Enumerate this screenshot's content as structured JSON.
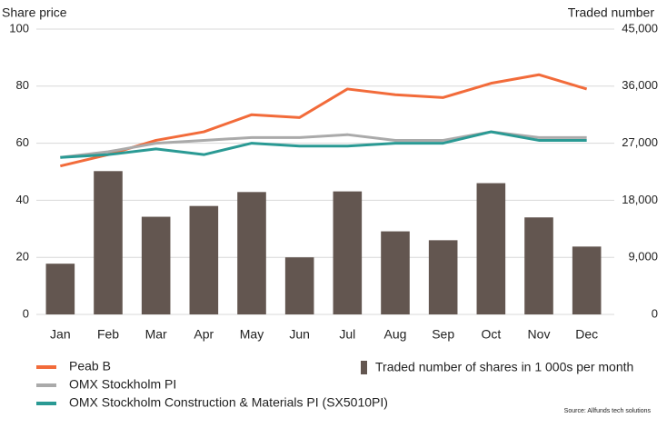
{
  "chart_data": {
    "type": "bar-line",
    "y_label": "Share price",
    "y2_label": "Traded number",
    "source": "Source: Allfunds tech solutions",
    "categories": [
      "Jan",
      "Feb",
      "Mar",
      "Apr",
      "May",
      "Jun",
      "Jul",
      "Aug",
      "Sep",
      "Oct",
      "Nov",
      "Dec"
    ],
    "series": [
      {
        "name": "Peab B",
        "type": "line",
        "color": "#f26b3a",
        "values": [
          52,
          56,
          61,
          64,
          70,
          69,
          79,
          77,
          76,
          81,
          84,
          79
        ]
      },
      {
        "name": "OMX Stockholm PI",
        "type": "line",
        "color": "#aaaaaa",
        "values": [
          55,
          57,
          60,
          61,
          62,
          62,
          63,
          61,
          61,
          64,
          62,
          62
        ]
      },
      {
        "name": "OMX Stockholm Construction & Materials PI (SX5010PI)",
        "type": "line",
        "color": "#2a9a94",
        "values": [
          55,
          56,
          58,
          56,
          60,
          59,
          59,
          60,
          60,
          64,
          61,
          61
        ]
      },
      {
        "name": "Traded number of shares in 1 000s per month",
        "type": "bar",
        "axis": "y2",
        "color": "#635650",
        "values": [
          8000,
          22600,
          15400,
          17100,
          19300,
          9000,
          19400,
          13100,
          11700,
          20700,
          15300,
          10700
        ]
      }
    ],
    "ylim": [
      0,
      100
    ],
    "yticks": [
      0,
      20,
      40,
      60,
      80,
      100
    ],
    "y2lim": [
      0,
      45000
    ],
    "y2ticks": [
      0,
      {
        "value": 9000,
        "label": "9,000"
      },
      {
        "value": 18000,
        "label": "18,000"
      },
      {
        "value": 27000,
        "label": "27,000"
      },
      {
        "value": 36000,
        "label": "36,000"
      },
      {
        "value": 45000,
        "label": "45,000"
      }
    ],
    "grid": true
  }
}
